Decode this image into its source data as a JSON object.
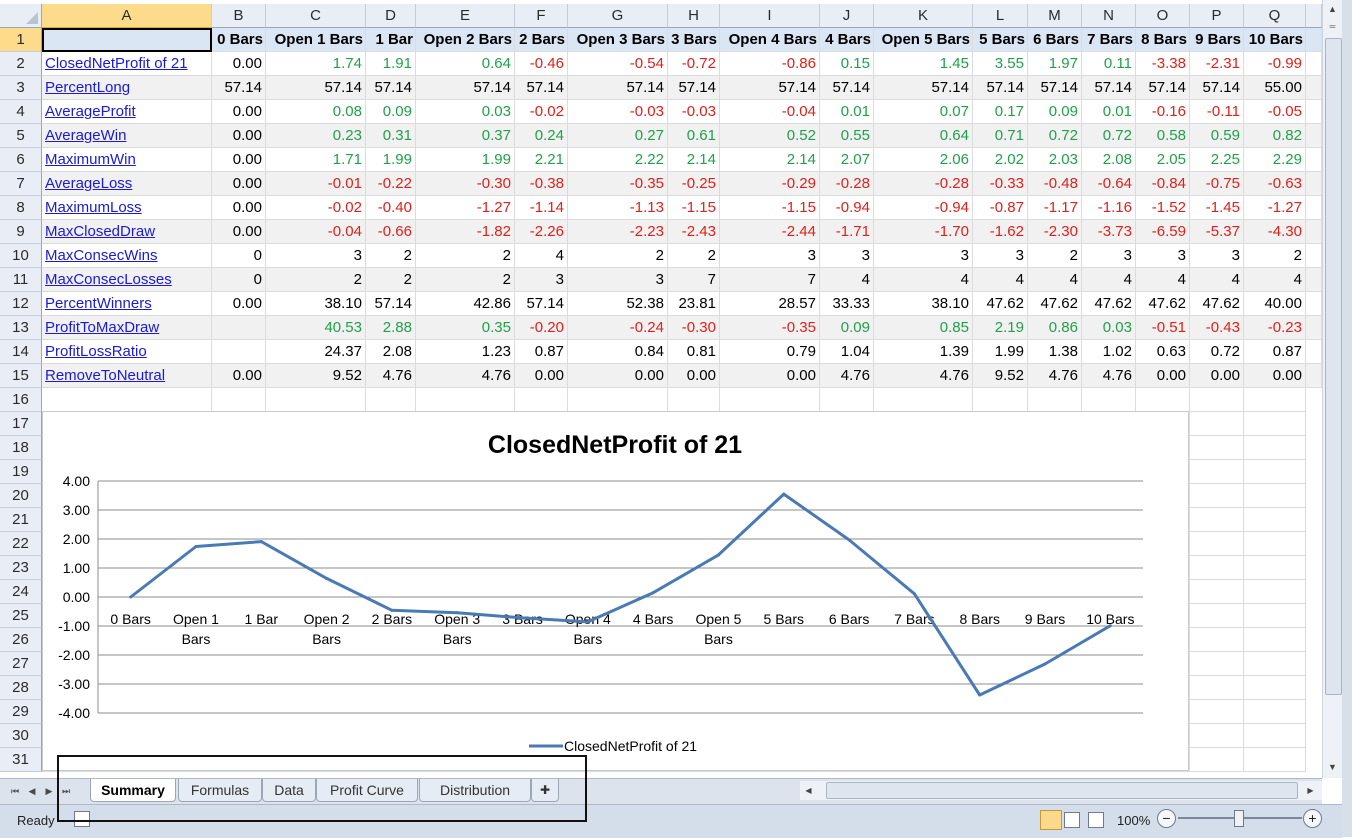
{
  "columns": [
    "A",
    "B",
    "C",
    "D",
    "E",
    "F",
    "G",
    "H",
    "I",
    "J",
    "K",
    "L",
    "M",
    "N",
    "O",
    "P",
    "Q"
  ],
  "rows": [
    "1",
    "2",
    "3",
    "4",
    "5",
    "6",
    "7",
    "8",
    "9",
    "10",
    "11",
    "12",
    "13",
    "14",
    "15",
    "16",
    "17",
    "18",
    "19",
    "20",
    "21",
    "22",
    "23",
    "24",
    "25",
    "26",
    "27",
    "28",
    "29",
    "30",
    "31"
  ],
  "header_row": [
    "",
    "0 Bars",
    "Open 1 Bars",
    "1 Bar",
    "Open 2 Bars",
    "2 Bars",
    "Open 3 Bars",
    "3 Bars",
    "Open 4 Bars",
    "4 Bars",
    "Open 5 Bars",
    "5 Bars",
    "6 Bars",
    "7 Bars",
    "8 Bars",
    "9 Bars",
    "10 Bars"
  ],
  "table": [
    {
      "label": "ClosedNetProfit of 21",
      "values": [
        "0.00",
        "1.74",
        "1.91",
        "0.64",
        "-0.46",
        "-0.54",
        "-0.72",
        "-0.86",
        "0.15",
        "1.45",
        "3.55",
        "1.97",
        "0.11",
        "-3.38",
        "-2.31",
        "-0.99"
      ],
      "colored": true
    },
    {
      "label": "PercentLong",
      "values": [
        "57.14",
        "57.14",
        "57.14",
        "57.14",
        "57.14",
        "57.14",
        "57.14",
        "57.14",
        "57.14",
        "57.14",
        "57.14",
        "57.14",
        "57.14",
        "57.14",
        "57.14",
        "55.00"
      ],
      "colored": false
    },
    {
      "label": "AverageProfit",
      "values": [
        "0.00",
        "0.08",
        "0.09",
        "0.03",
        "-0.02",
        "-0.03",
        "-0.03",
        "-0.04",
        "0.01",
        "0.07",
        "0.17",
        "0.09",
        "0.01",
        "-0.16",
        "-0.11",
        "-0.05"
      ],
      "colored": true
    },
    {
      "label": "AverageWin",
      "values": [
        "0.00",
        "0.23",
        "0.31",
        "0.37",
        "0.24",
        "0.27",
        "0.61",
        "0.52",
        "0.55",
        "0.64",
        "0.71",
        "0.72",
        "0.72",
        "0.58",
        "0.59",
        "0.82"
      ],
      "colored": true
    },
    {
      "label": "MaximumWin",
      "values": [
        "0.00",
        "1.71",
        "1.99",
        "1.99",
        "2.21",
        "2.22",
        "2.14",
        "2.14",
        "2.07",
        "2.06",
        "2.02",
        "2.03",
        "2.08",
        "2.05",
        "2.25",
        "2.29"
      ],
      "colored": true
    },
    {
      "label": "AverageLoss",
      "values": [
        "0.00",
        "-0.01",
        "-0.22",
        "-0.30",
        "-0.38",
        "-0.35",
        "-0.25",
        "-0.29",
        "-0.28",
        "-0.28",
        "-0.33",
        "-0.48",
        "-0.64",
        "-0.84",
        "-0.75",
        "-0.63"
      ],
      "colored": true
    },
    {
      "label": "MaximumLoss",
      "values": [
        "0.00",
        "-0.02",
        "-0.40",
        "-1.27",
        "-1.14",
        "-1.13",
        "-1.15",
        "-1.15",
        "-0.94",
        "-0.94",
        "-0.87",
        "-1.17",
        "-1.16",
        "-1.52",
        "-1.45",
        "-1.27"
      ],
      "colored": true
    },
    {
      "label": "MaxClosedDraw",
      "values": [
        "0.00",
        "-0.04",
        "-0.66",
        "-1.82",
        "-2.26",
        "-2.23",
        "-2.43",
        "-2.44",
        "-1.71",
        "-1.70",
        "-1.62",
        "-2.30",
        "-3.73",
        "-6.59",
        "-5.37",
        "-4.30"
      ],
      "colored": true
    },
    {
      "label": "MaxConsecWins",
      "values": [
        "0",
        "3",
        "2",
        "2",
        "4",
        "2",
        "2",
        "3",
        "3",
        "3",
        "3",
        "2",
        "3",
        "3",
        "3",
        "2"
      ],
      "colored": false
    },
    {
      "label": "MaxConsecLosses",
      "values": [
        "0",
        "2",
        "2",
        "2",
        "3",
        "3",
        "7",
        "7",
        "4",
        "4",
        "4",
        "4",
        "4",
        "4",
        "4",
        "4"
      ],
      "colored": false
    },
    {
      "label": "PercentWinners",
      "values": [
        "0.00",
        "38.10",
        "57.14",
        "42.86",
        "57.14",
        "52.38",
        "23.81",
        "28.57",
        "33.33",
        "38.10",
        "47.62",
        "47.62",
        "47.62",
        "47.62",
        "47.62",
        "40.00"
      ],
      "colored": false
    },
    {
      "label": "ProfitToMaxDraw",
      "values": [
        "",
        "40.53",
        "2.88",
        "0.35",
        "-0.20",
        "-0.24",
        "-0.30",
        "-0.35",
        "0.09",
        "0.85",
        "2.19",
        "0.86",
        "0.03",
        "-0.51",
        "-0.43",
        "-0.23"
      ],
      "colored": true
    },
    {
      "label": "ProfitLossRatio",
      "values": [
        "",
        "24.37",
        "2.08",
        "1.23",
        "0.87",
        "0.84",
        "0.81",
        "0.79",
        "1.04",
        "1.39",
        "1.99",
        "1.38",
        "1.02",
        "0.63",
        "0.72",
        "0.87"
      ],
      "colored": false
    },
    {
      "label": "RemoveToNeutral",
      "values": [
        "0.00",
        "9.52",
        "4.76",
        "4.76",
        "0.00",
        "0.00",
        "0.00",
        "0.00",
        "4.76",
        "4.76",
        "9.52",
        "4.76",
        "4.76",
        "0.00",
        "0.00",
        "0.00"
      ],
      "colored": false
    }
  ],
  "chart_data": {
    "type": "line",
    "title": "ClosedNetProfit of 21",
    "categories": [
      "0 Bars",
      "Open 1 Bars",
      "1 Bar",
      "Open 2 Bars",
      "2 Bars",
      "Open 3 Bars",
      "3 Bars",
      "Open 4 Bars",
      "4 Bars",
      "Open 5 Bars",
      "5 Bars",
      "6 Bars",
      "7 Bars",
      "8 Bars",
      "9 Bars",
      "10 Bars"
    ],
    "series": [
      {
        "name": "ClosedNetProfit of 21",
        "values": [
          0.0,
          1.74,
          1.91,
          0.64,
          -0.46,
          -0.54,
          -0.72,
          -0.86,
          0.15,
          1.45,
          3.55,
          1.97,
          0.11,
          -3.38,
          -2.31,
          -0.99
        ],
        "color": "#4a7ab5"
      }
    ],
    "ylim": [
      -4,
      4
    ],
    "yticks": [
      "4.00",
      "3.00",
      "2.00",
      "1.00",
      "0.00",
      "-1.00",
      "-2.00",
      "-3.00",
      "-4.00"
    ],
    "grid": true,
    "legend": "bottom"
  },
  "tabs": [
    "Summary",
    "Formulas",
    "Data",
    "Profit Curve",
    "Distribution"
  ],
  "status": {
    "ready": "Ready",
    "zoom": "100%"
  },
  "colors": {
    "positive": "#21a04a",
    "negative": "#e0201b",
    "link": "#1a1ad8",
    "header_bg": "#e9eef6",
    "selected_header": "#fcdc8b"
  }
}
